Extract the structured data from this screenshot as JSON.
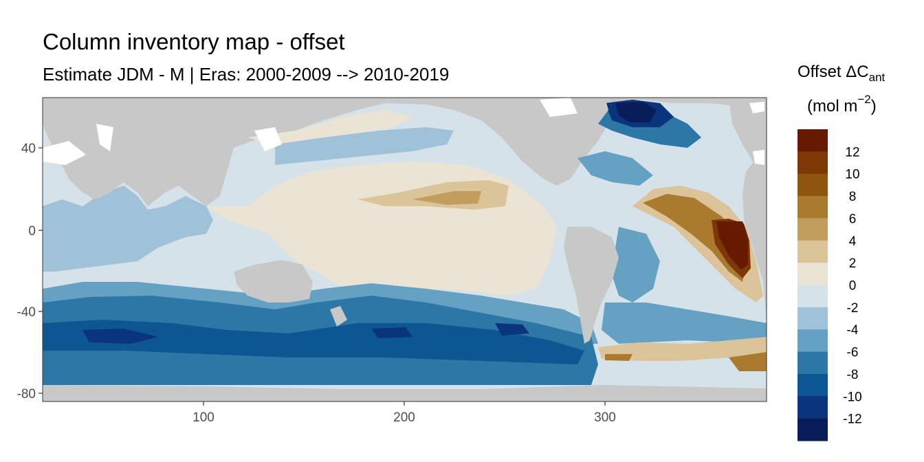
{
  "title": "Column inventory map - offset",
  "subtitle": "Estimate JDM - M | Eras: 2000-2009 --> 2010-2019",
  "legend": {
    "title_main": "Offset ΔC",
    "title_sub": "ant",
    "units_prefix": "(mol m",
    "units_exp": "−2",
    "units_suffix": ")",
    "bins": [
      {
        "label": "12",
        "color": "#671a00"
      },
      {
        "label": "10",
        "color": "#7e3805"
      },
      {
        "label": "8",
        "color": "#8d5510"
      },
      {
        "label": "6",
        "color": "#aa7a2e"
      },
      {
        "label": "4",
        "color": "#c29e5e"
      },
      {
        "label": "2",
        "color": "#dcc49a"
      },
      {
        "label": "0",
        "color": "#ebe4d4"
      },
      {
        "label": "-2",
        "color": "#d5e2ea"
      },
      {
        "label": "-4",
        "color": "#9fc2d9"
      },
      {
        "label": "-6",
        "color": "#65a1c3"
      },
      {
        "label": "-8",
        "color": "#2c77a6"
      },
      {
        "label": "-10",
        "color": "#0c5691"
      },
      {
        "label": "-12",
        "color": "#0a347b"
      },
      {
        "label": "",
        "color": "#081d5a"
      }
    ]
  },
  "axes": {
    "x_ticks": [
      "100",
      "200",
      "300"
    ],
    "y_ticks": [
      "40",
      "0",
      "-40",
      "-80"
    ]
  },
  "colors": {
    "land": "#c8c8c8",
    "no_data": "#ffffff"
  }
}
